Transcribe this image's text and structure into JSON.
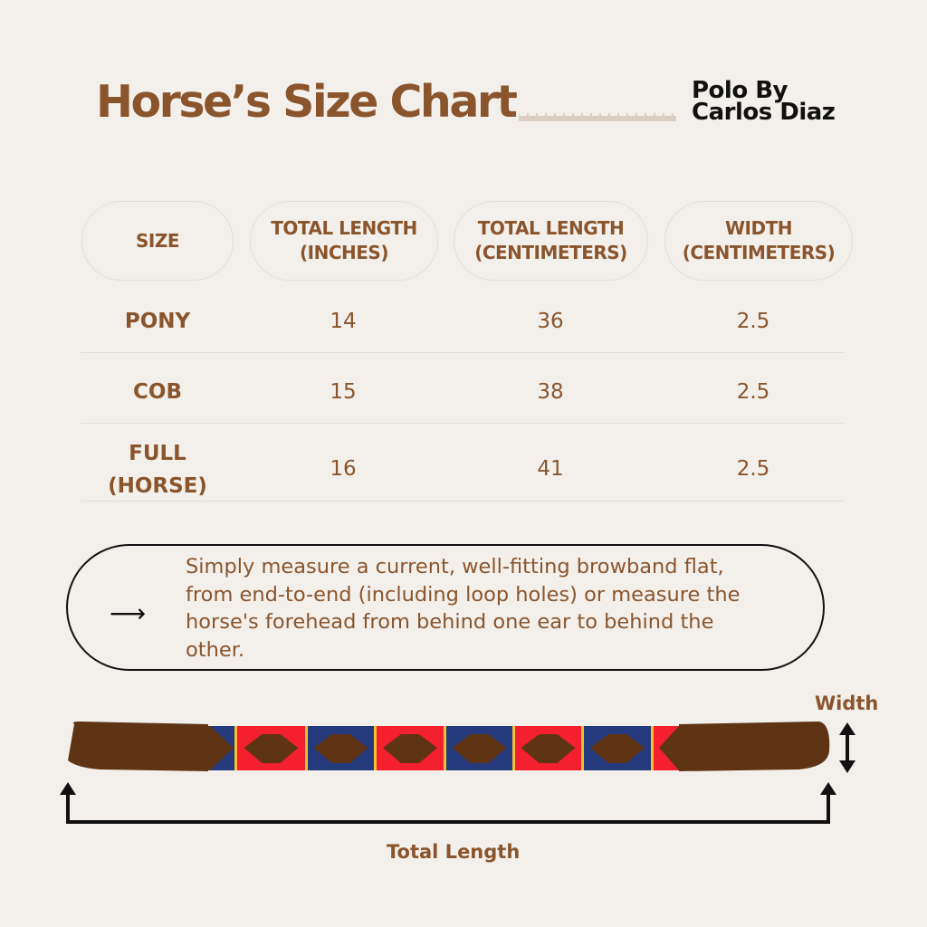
{
  "header": {
    "title": "Horse’s Size Chart",
    "brand_line1": "Polo By",
    "brand_line2": "Carlos Diaz"
  },
  "table": {
    "headers": [
      {
        "line1": "SIZE",
        "line2": ""
      },
      {
        "line1": "TOTAL LENGTH",
        "line2": "(INCHES)"
      },
      {
        "line1": "TOTAL LENGTH",
        "line2": "(CENTIMETERS)"
      },
      {
        "line1": "WIDTH",
        "line2": "(CENTIMETERS)"
      }
    ],
    "rows": [
      {
        "size": "PONY",
        "size2": "",
        "inches": "14",
        "cm": "36",
        "width": "2.5"
      },
      {
        "size": "COB",
        "size2": "",
        "inches": "15",
        "cm": "38",
        "width": "2.5"
      },
      {
        "size": "FULL",
        "size2": "(HORSE)",
        "inches": "16",
        "cm": "41",
        "width": "2.5"
      }
    ]
  },
  "note": {
    "icon": "arrow-right-icon",
    "text": "Simply measure a current, well-fitting browband flat, from end-to-end (including loop holes) or measure the horse's forehead from behind one ear to behind the other."
  },
  "diagram": {
    "width_label": "Width",
    "length_label": "Total Length"
  },
  "colors": {
    "accent": "#8a552d",
    "background": "#f3f0eb",
    "leather": "#5e3415",
    "blue": "#243a7c",
    "red": "#f5202f",
    "yellow": "#f2c230"
  }
}
